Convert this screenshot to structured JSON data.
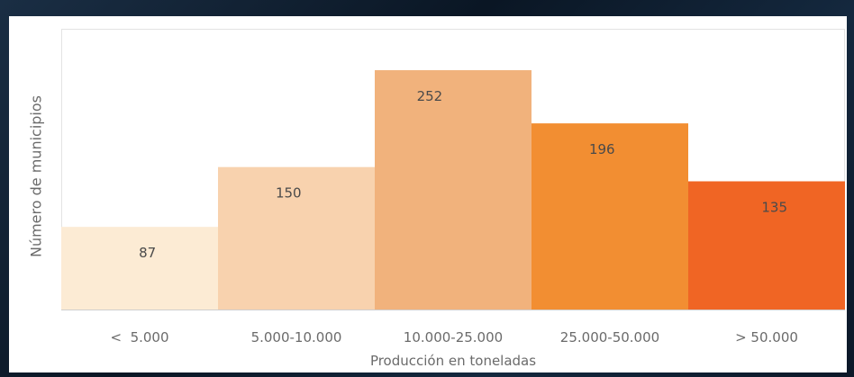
{
  "chart_data": {
    "type": "bar",
    "categories": [
      "<  5.000",
      "5.000-10.000",
      "10.000-25.000",
      "25.000-50.000",
      "> 50.000"
    ],
    "values": [
      87,
      150,
      252,
      196,
      135
    ],
    "colors": [
      "#fcebd4",
      "#f8d2ae",
      "#f1b27c",
      "#f28e32",
      "#f06524"
    ],
    "title": "",
    "xlabel": "Producción en toneladas",
    "ylabel": "Número de municipios",
    "ylim": [
      0,
      300
    ],
    "grid": false,
    "legend": "none"
  }
}
